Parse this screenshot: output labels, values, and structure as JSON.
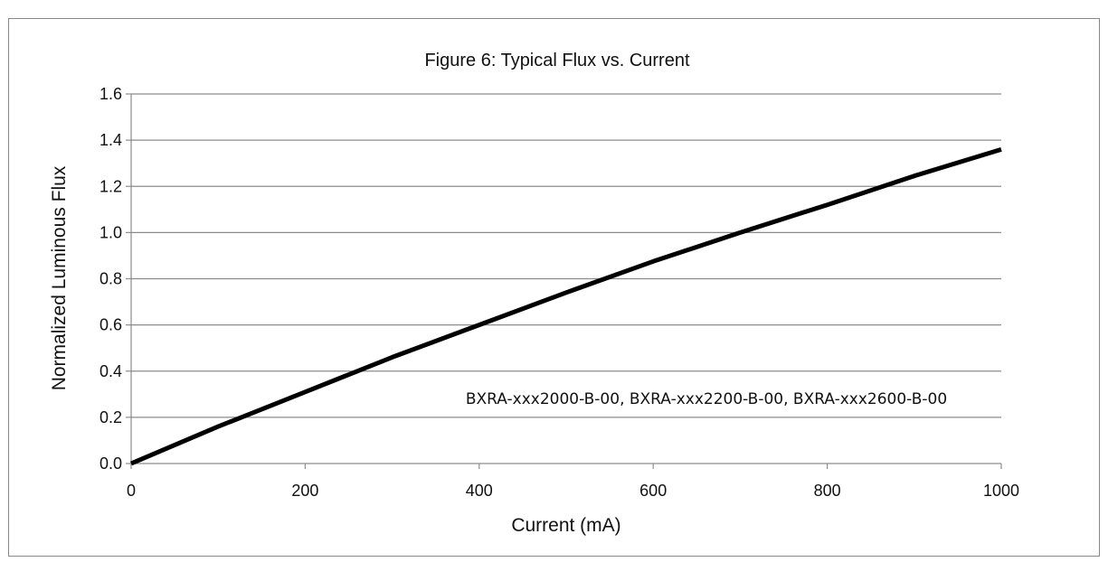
{
  "chart_data": {
    "type": "line",
    "title": "Figure 6:  Typical Flux vs. Current",
    "xlabel": "Current (mA)",
    "ylabel": "Normalized Luminous Flux",
    "xlim": [
      0,
      1000
    ],
    "ylim": [
      0,
      1.6
    ],
    "x_ticks": [
      "0",
      "200",
      "400",
      "600",
      "800",
      "1000"
    ],
    "y_ticks": [
      "0.0",
      "0.2",
      "0.4",
      "0.6",
      "0.8",
      "1.0",
      "1.2",
      "1.4",
      "1.6"
    ],
    "grid": "horizontal",
    "legend": "none",
    "annotation": "BXRA-xxx2000-B-00, BXRA-xxx2200-B-00, BXRA-xxx2600-B-00",
    "series": [
      {
        "color": "#000000",
        "x": [
          0,
          100,
          200,
          300,
          400,
          500,
          600,
          700,
          800,
          900,
          1000
        ],
        "y": [
          0.0,
          0.16,
          0.31,
          0.46,
          0.6,
          0.74,
          0.875,
          1.0,
          1.12,
          1.245,
          1.36
        ]
      }
    ]
  }
}
